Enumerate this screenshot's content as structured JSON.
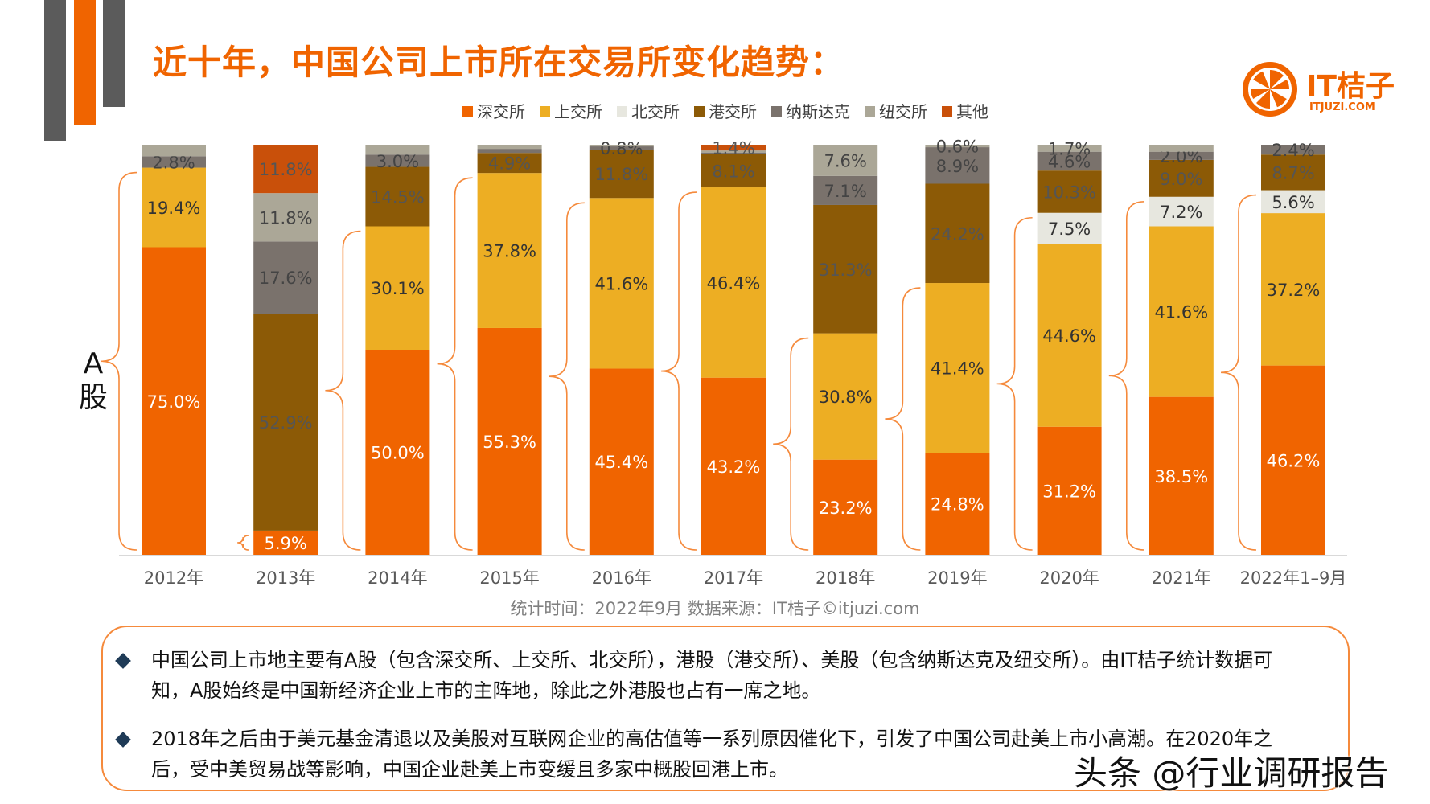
{
  "title": "近十年，中国公司上市所在交易所变化趋势：",
  "logo": {
    "name": "IT桔子",
    "url": "ITJUZI.COM",
    "icon": "orange-slice-icon"
  },
  "a_share_label": "A股",
  "caption": "统计时间：2022年9月   数据来源：IT桔子©itjuzi.com",
  "notes": [
    "中国公司上市地主要有A股（包含深交所、上交所、北交所），港股（港交所）、美股（包含纳斯达克及纽交所）。由IT桔子统计数据可知，A股始终是中国新经济企业上市的主阵地，除此之外港股也占有一席之地。",
    "2018年之后由于美元基金清退以及美股对互联网企业的高估值等一系列原因催化下，引发了中国公司赴美上市小高潮。在2020年之后，受中美贸易战等影响，中国企业赴美上市变缓且多家中概股回港上市。"
  ],
  "watermark": "头条 @行业调研报告",
  "chart_data": {
    "type": "bar",
    "stacked": true,
    "percent_stacked": true,
    "categories": [
      "2012年",
      "2013年",
      "2014年",
      "2015年",
      "2016年",
      "2017年",
      "2018年",
      "2019年",
      "2020年",
      "2021年",
      "2022年1–9月"
    ],
    "series": [
      {
        "name": "深交所",
        "color": "#f06400",
        "values": [
          75.0,
          5.9,
          50.0,
          55.3,
          45.4,
          43.2,
          23.2,
          24.8,
          31.2,
          38.5,
          46.2
        ],
        "labels": [
          "75.0%",
          "5.9%",
          "50.0%",
          "55.3%",
          "45.4%",
          "43.2%",
          "23.2%",
          "24.8%",
          "31.2%",
          "38.5%",
          "46.2%"
        ]
      },
      {
        "name": "上交所",
        "color": "#edae23",
        "values": [
          19.4,
          0,
          30.1,
          37.8,
          41.6,
          46.4,
          30.8,
          41.4,
          44.6,
          41.6,
          37.2
        ],
        "labels": [
          "19.4%",
          "",
          "30.1%",
          "37.8%",
          "41.6%",
          "46.4%",
          "30.8%",
          "41.4%",
          "44.6%",
          "41.6%",
          "37.2%"
        ]
      },
      {
        "name": "北交所",
        "color": "#e7e7df",
        "values": [
          0,
          0,
          0,
          0,
          0,
          0,
          0,
          0,
          7.5,
          7.2,
          5.6
        ],
        "labels": [
          "",
          "",
          "",
          "",
          "",
          "",
          "",
          "",
          "7.5%",
          "7.2%",
          "5.6%"
        ]
      },
      {
        "name": "港交所",
        "color": "#8c5a06",
        "values": [
          0,
          52.9,
          14.5,
          4.9,
          11.8,
          8.1,
          31.3,
          24.2,
          10.3,
          9.0,
          8.7
        ],
        "labels": [
          "",
          "52.9%",
          "14.5%",
          "4.9%",
          "11.8%",
          "8.1%",
          "31.3%",
          "24.2%",
          "10.3%",
          "9.0%",
          "8.7%"
        ]
      },
      {
        "name": "纳斯达克",
        "color": "#7a726c",
        "values": [
          2.8,
          17.6,
          3.0,
          1.0,
          0.8,
          0.4,
          7.1,
          8.9,
          4.6,
          2.0,
          2.4
        ],
        "labels": [
          "2.8%",
          "17.6%",
          "3.0%",
          "",
          "0.8%",
          "",
          "7.1%",
          "8.9%",
          "4.6%",
          "2.0%",
          "2.4%"
        ]
      },
      {
        "name": "纽交所",
        "color": "#aba797",
        "values": [
          2.8,
          11.8,
          2.4,
          1.0,
          0.4,
          0.5,
          7.6,
          0.6,
          1.7,
          1.7,
          0.0
        ],
        "labels": [
          "",
          "11.8%",
          "",
          "",
          "",
          "",
          "7.6%",
          "0.6%",
          "1.7%",
          "",
          ""
        ]
      },
      {
        "name": "其他",
        "color": "#c9500a",
        "values": [
          0,
          11.8,
          0,
          0,
          0,
          1.4,
          0,
          0,
          0,
          0,
          0
        ],
        "labels": [
          "",
          "11.8%",
          "",
          "",
          "",
          "1.4%",
          "",
          "",
          "",
          "",
          ""
        ]
      }
    ],
    "label_colors": {
      "深交所": "#ffffff",
      "上交所": "#333333",
      "北交所": "#333333",
      "港交所": "#555555",
      "纳斯达克": "#444444",
      "纽交所": "#444444",
      "其他": "#555555"
    },
    "ylim": [
      0,
      100
    ],
    "grid": false,
    "legend_position": "top",
    "a_share_bracket_series": [
      "深交所",
      "上交所",
      "北交所"
    ]
  }
}
